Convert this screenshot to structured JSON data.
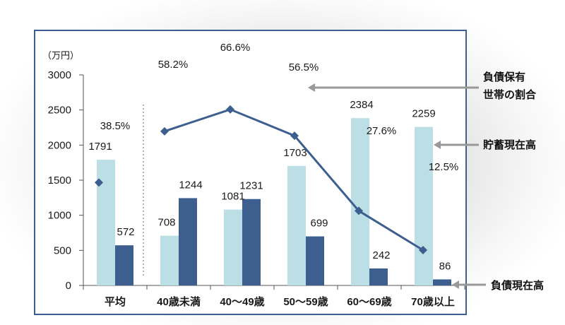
{
  "chart_data": {
    "type": "bar",
    "title": "",
    "unit_label": "（万円）",
    "ylim": [
      0,
      3000
    ],
    "yticks": [
      0,
      500,
      1000,
      1500,
      2000,
      2500,
      3000
    ],
    "categories": [
      "平均",
      "40歳未満",
      "40～49歳",
      "50～59歳",
      "60～69歳",
      "70歳以上"
    ],
    "series": [
      {
        "name": "貯蓄現在高",
        "values": [
          1791,
          708,
          1081,
          1703,
          2384,
          2259
        ],
        "color": "#bcdfe6"
      },
      {
        "name": "負債現在高",
        "values": [
          572,
          1244,
          1231,
          699,
          242,
          86
        ],
        "color": "#3d5f8f"
      }
    ],
    "line_series": {
      "name": "負債保有世帯の割合",
      "values": [
        38.5,
        58.2,
        66.6,
        56.5,
        27.6,
        12.5
      ],
      "labels": [
        "38.5%",
        "58.2%",
        "66.6%",
        "56.5%",
        "27.6%",
        "12.5%"
      ],
      "color": "#3d5f8f",
      "scale_note": "plotted on a hidden secondary axis"
    },
    "annotations": {
      "debt_ratio": [
        "負債保有",
        "世帯の割合"
      ],
      "savings": "貯蓄現在高",
      "debt": "負債現在高"
    },
    "grid": false
  }
}
